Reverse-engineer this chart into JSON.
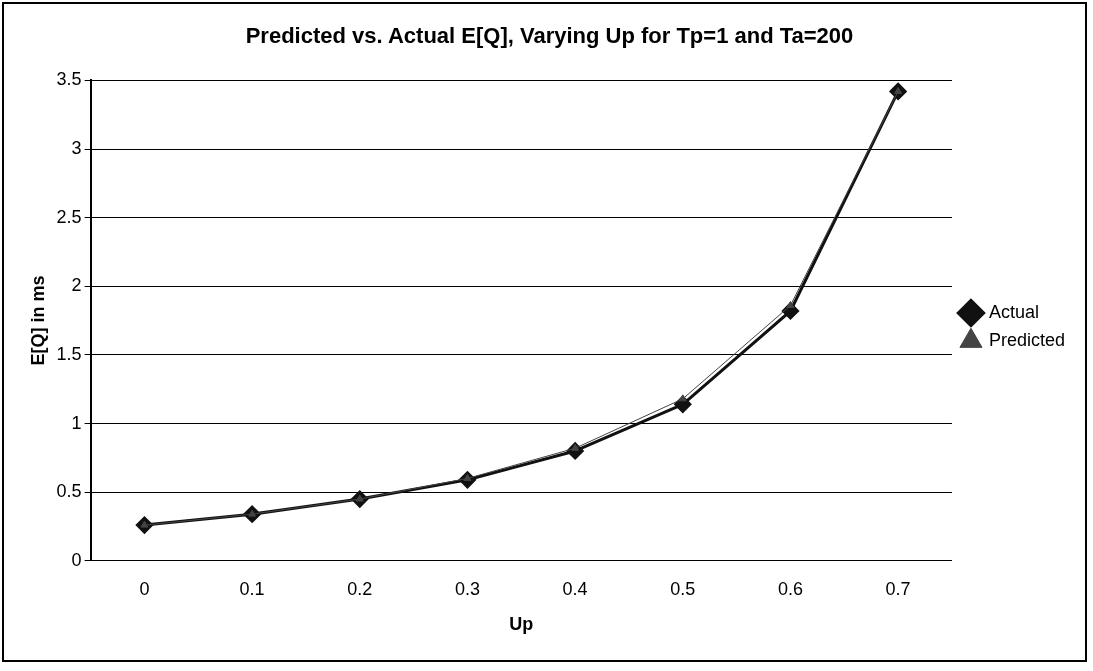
{
  "chart_data": {
    "type": "line",
    "title": "Predicted vs. Actual E[Q], Varying Up for Tp=1 and Ta=200",
    "xlabel": "Up",
    "ylabel": "E[Q] in ms",
    "categories": [
      "0",
      "0.1",
      "0.2",
      "0.3",
      "0.4",
      "0.5",
      "0.6",
      "0.7"
    ],
    "series": [
      {
        "name": "Actual",
        "color": "#111111",
        "values": [
          0.26,
          0.34,
          0.45,
          0.59,
          0.8,
          1.14,
          1.82,
          3.42
        ],
        "marker": "diamond"
      },
      {
        "name": "Predicted",
        "color": "#444444",
        "values": [
          0.26,
          0.34,
          0.45,
          0.6,
          0.82,
          1.18,
          1.86,
          3.42
        ],
        "marker": "triangle"
      }
    ],
    "ylim": [
      0,
      3.5
    ],
    "yticks": [
      0,
      0.5,
      1,
      1.5,
      2,
      2.5,
      3,
      3.5
    ],
    "grid": "y",
    "legend": "right"
  }
}
